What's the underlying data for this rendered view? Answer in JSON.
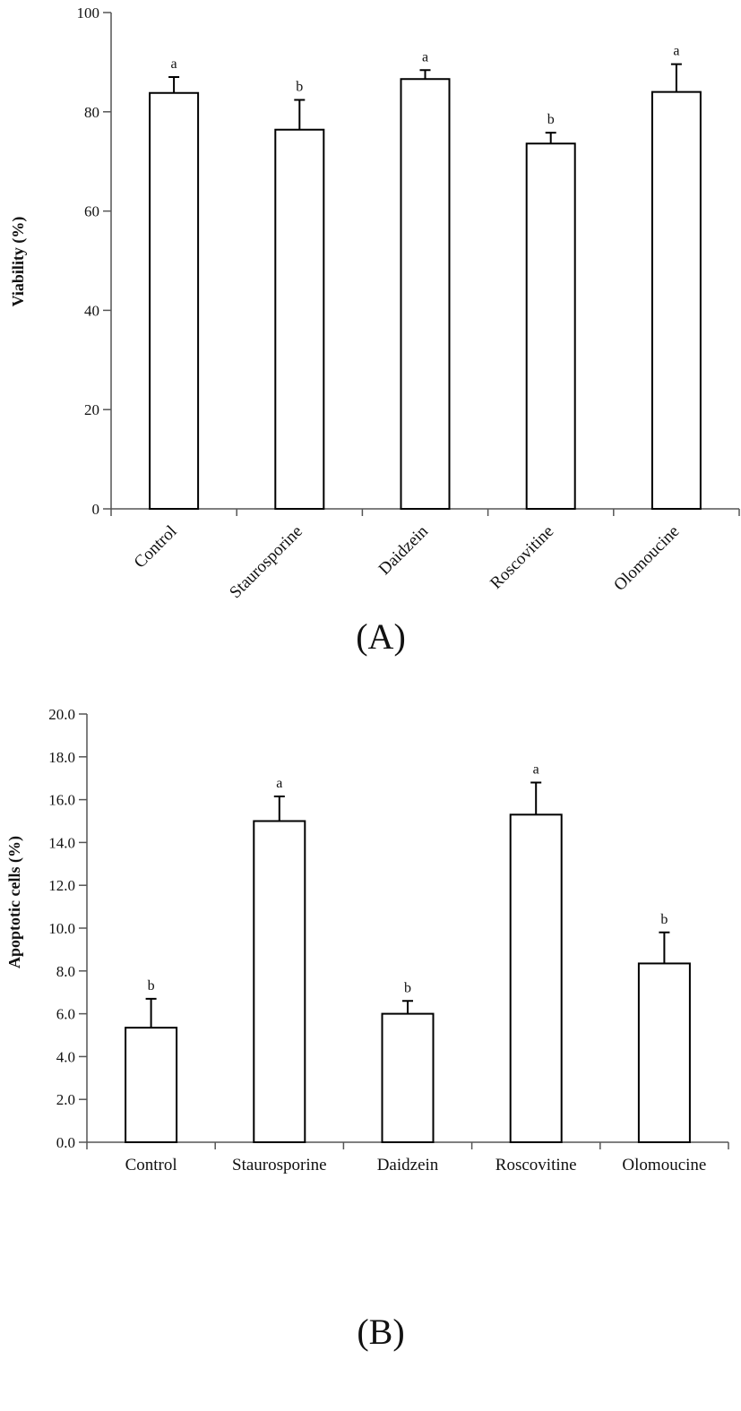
{
  "chart_data": [
    {
      "type": "bar",
      "panel_label": "(A)",
      "ylabel": "Viability  (%)",
      "xlabel": "",
      "ylim": [
        0,
        100
      ],
      "yticks": [
        0,
        20,
        40,
        60,
        80,
        100
      ],
      "ytick_labels": [
        "0",
        "20",
        "40",
        "60",
        "80",
        "100"
      ],
      "categories": [
        "Control",
        "Staurosporine",
        "Daidzein",
        "Roscovitine",
        "Olomoucine"
      ],
      "values": [
        83.8,
        76.4,
        86.6,
        73.6,
        84.0
      ],
      "errors": [
        3.2,
        6.0,
        1.8,
        2.2,
        5.6
      ],
      "significance": [
        "a",
        "b",
        "a",
        "b",
        "a"
      ],
      "tick_rotation": -45,
      "grid": false
    },
    {
      "type": "bar",
      "panel_label": "(B)",
      "ylabel": "Apoptotic  cells (%)",
      "xlabel": "",
      "ylim": [
        0,
        20
      ],
      "yticks": [
        0,
        2,
        4,
        6,
        8,
        10,
        12,
        14,
        16,
        18,
        20
      ],
      "ytick_labels": [
        "0.0",
        "2.0",
        "4.0",
        "6.0",
        "8.0",
        "10.0",
        "12.0",
        "14.0",
        "16.0",
        "18.0",
        "20.0"
      ],
      "categories": [
        "Control",
        "Staurosporine",
        "Daidzein",
        "Roscovitine",
        "Olomoucine"
      ],
      "values": [
        5.35,
        15.0,
        6.0,
        15.3,
        8.35
      ],
      "errors": [
        1.35,
        1.15,
        0.6,
        1.5,
        1.45
      ],
      "significance": [
        "b",
        "a",
        "b",
        "a",
        "b"
      ],
      "tick_rotation": 0,
      "grid": false
    }
  ]
}
